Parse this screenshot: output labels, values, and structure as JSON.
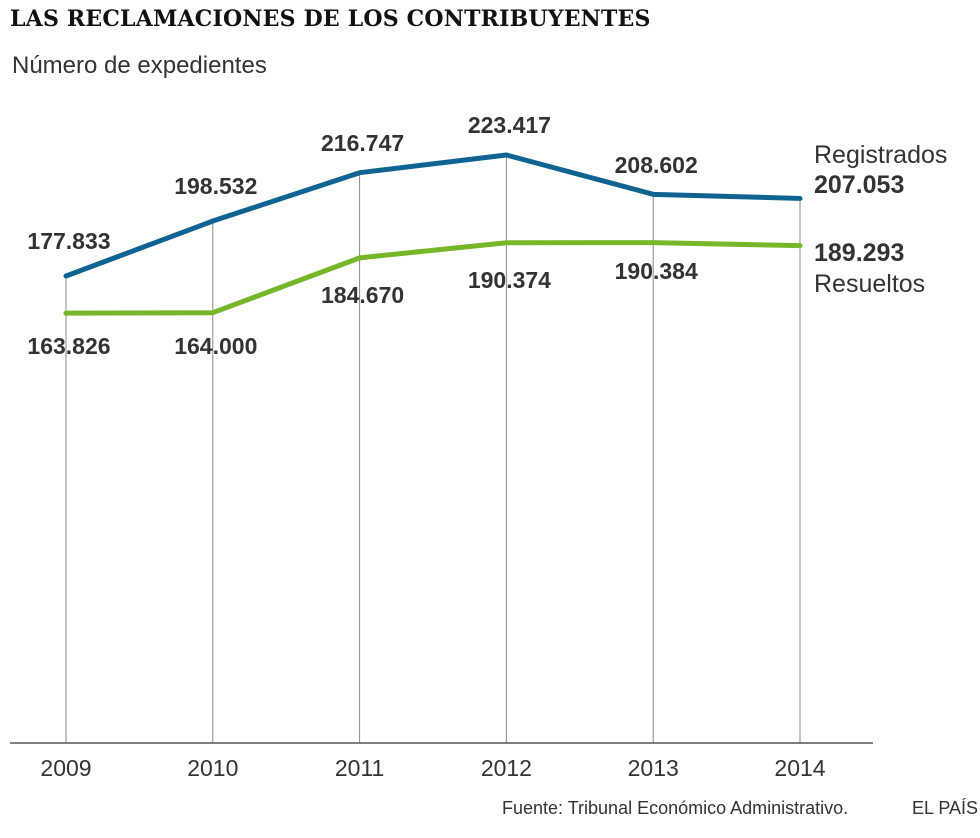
{
  "header": {
    "title": "LAS RECLAMACIONES DE LOS CONTRIBUYENTES",
    "subtitle": "Número de expedientes"
  },
  "footer": {
    "source": "Fuente: Tribunal Económico Administrativo.",
    "brand": "EL PAÍS"
  },
  "colors": {
    "registrados": "#0e6392",
    "resueltos": "#76b72a",
    "grid": "#888888",
    "text": "#333333"
  },
  "chart_data": {
    "type": "line",
    "title": "LAS RECLAMACIONES DE LOS CONTRIBUYENTES",
    "subtitle": "Número de expedientes",
    "xlabel": "",
    "ylabel": "",
    "categories": [
      "2009",
      "2010",
      "2011",
      "2012",
      "2013",
      "2014"
    ],
    "ylim": [
      120000,
      235000
    ],
    "grid": "vertical",
    "series": [
      {
        "name": "Registrados",
        "values": [
          177833,
          198532,
          216747,
          223417,
          208602,
          207053
        ],
        "labels": [
          "177.833",
          "198.532",
          "216.747",
          "223.417",
          "208.602",
          "207.053"
        ],
        "label_position": "above",
        "end_label": "207.053"
      },
      {
        "name": "Resueltos",
        "values": [
          163826,
          164000,
          184670,
          190374,
          190384,
          189293
        ],
        "labels": [
          "163.826",
          "164.000",
          "184.670",
          "190.374",
          "190.384",
          "189.293"
        ],
        "label_position": "below",
        "end_label": "189.293"
      }
    ]
  }
}
